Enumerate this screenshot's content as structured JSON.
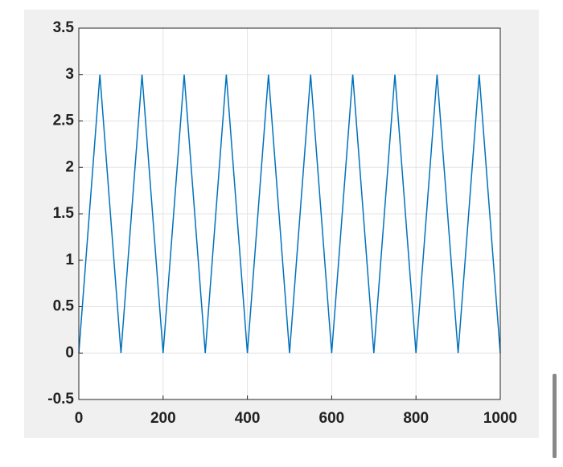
{
  "chart_data": {
    "type": "line",
    "x": [
      0,
      50,
      100,
      150,
      200,
      250,
      300,
      350,
      400,
      450,
      500,
      550,
      600,
      650,
      700,
      750,
      800,
      850,
      900,
      950,
      1000
    ],
    "series": [
      {
        "color": "#0072bd",
        "values": [
          0,
          3,
          0,
          3,
          0,
          3,
          0,
          3,
          0,
          3,
          0,
          3,
          0,
          3,
          0,
          3,
          0,
          3,
          0,
          3,
          0
        ]
      }
    ],
    "xlim": [
      0,
      1000
    ],
    "xticks": [
      0,
      200,
      400,
      600,
      800,
      1000
    ],
    "ylim": [
      -0.5,
      3.5
    ],
    "yticks": [
      -0.5,
      0,
      0.5,
      1,
      1.5,
      2,
      2.5,
      3,
      3.5
    ],
    "grid": true
  }
}
